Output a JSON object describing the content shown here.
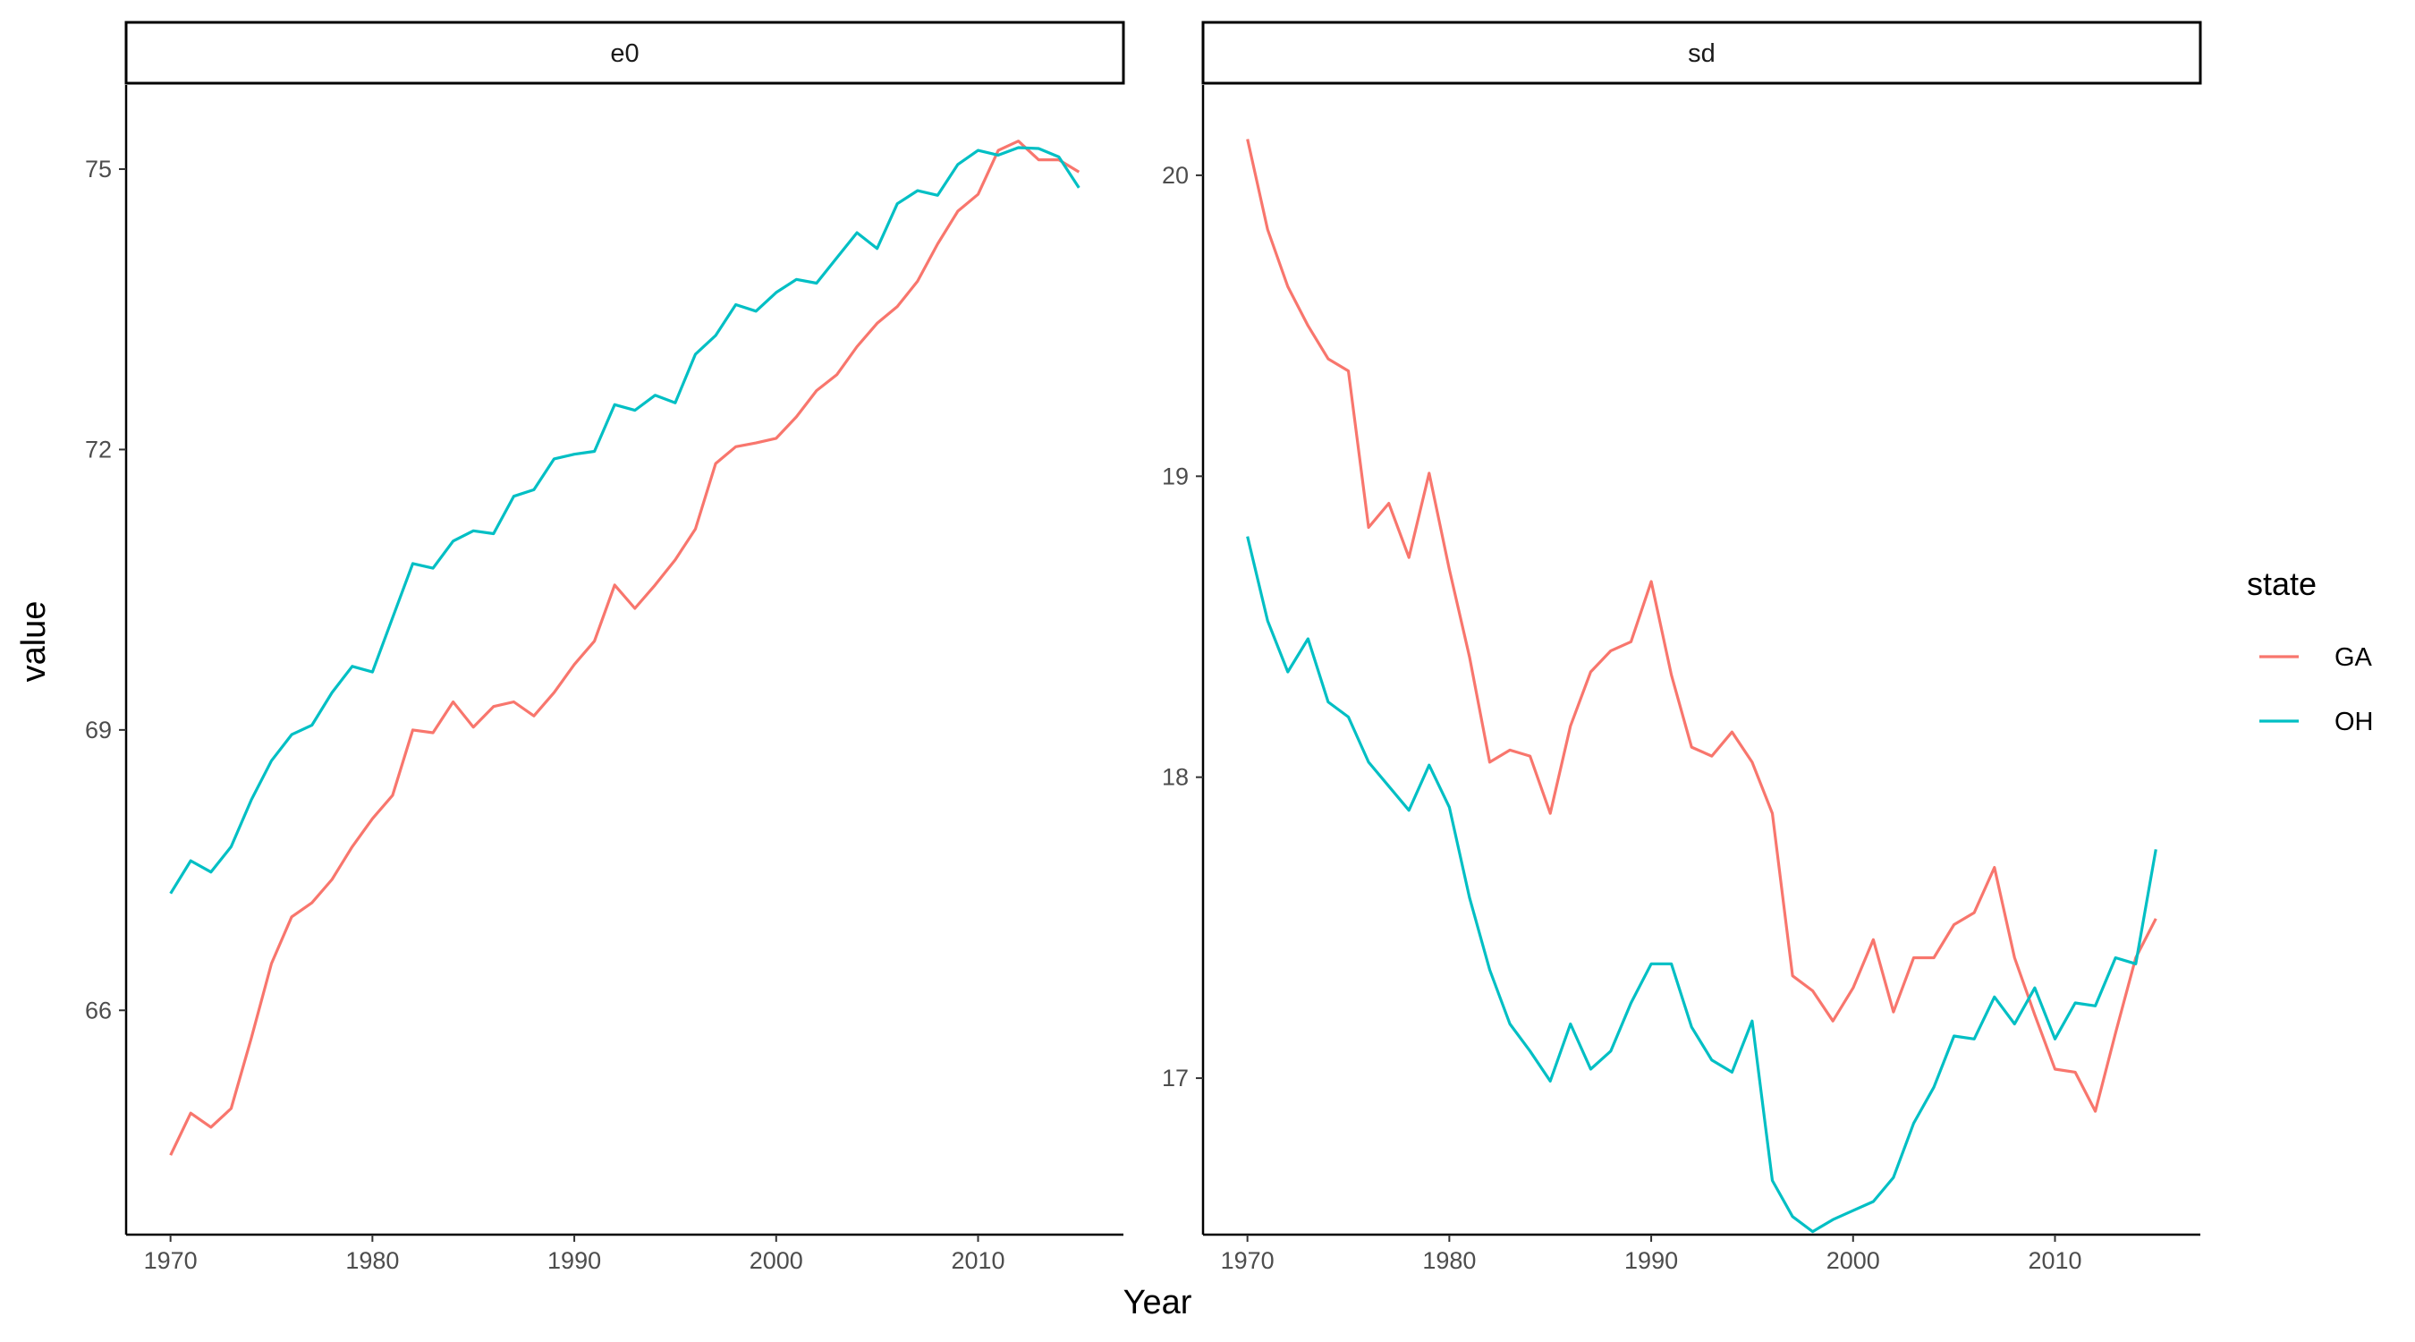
{
  "chart_data": {
    "type": "line",
    "xlabel": "Year",
    "ylabel": "value",
    "colors": {
      "GA": "#F8766D",
      "OH": "#00BFC4"
    },
    "legend": {
      "title": "state",
      "entries": [
        "GA",
        "OH"
      ],
      "placement": "right"
    },
    "x_ticks": [
      1970,
      1980,
      1990,
      2000,
      2010
    ],
    "x": [
      1970,
      1971,
      1972,
      1973,
      1974,
      1975,
      1976,
      1977,
      1978,
      1979,
      1980,
      1981,
      1982,
      1983,
      1984,
      1985,
      1986,
      1987,
      1988,
      1989,
      1990,
      1991,
      1992,
      1993,
      1994,
      1995,
      1996,
      1997,
      1998,
      1999,
      2000,
      2001,
      2002,
      2003,
      2004,
      2005,
      2006,
      2007,
      2008,
      2009,
      2010,
      2011,
      2012,
      2013,
      2014,
      2015
    ],
    "facets": [
      {
        "strip": "e0",
        "ylim": [
          63.6,
          75.9
        ],
        "y_ticks": [
          66,
          69,
          72,
          75
        ],
        "series": [
          {
            "name": "GA",
            "values": [
              64.45,
              64.9,
              64.75,
              64.95,
              65.7,
              66.5,
              67.0,
              67.15,
              67.4,
              67.75,
              68.05,
              68.3,
              69.0,
              68.97,
              69.3,
              69.03,
              69.25,
              69.3,
              69.15,
              69.4,
              69.7,
              69.95,
              70.55,
              70.3,
              70.55,
              70.82,
              71.15,
              71.85,
              72.03,
              72.07,
              72.12,
              72.35,
              72.63,
              72.8,
              73.1,
              73.35,
              73.53,
              73.8,
              74.2,
              74.55,
              74.73,
              75.2,
              75.3,
              75.1,
              75.1,
              74.97
            ]
          },
          {
            "name": "OH",
            "values": [
              67.25,
              67.6,
              67.48,
              67.75,
              68.25,
              68.67,
              68.95,
              69.05,
              69.4,
              69.68,
              69.62,
              70.2,
              70.78,
              70.73,
              71.02,
              71.13,
              71.1,
              71.5,
              71.57,
              71.9,
              71.95,
              71.98,
              72.48,
              72.42,
              72.58,
              72.5,
              73.02,
              73.22,
              73.55,
              73.48,
              73.68,
              73.82,
              73.78,
              74.05,
              74.32,
              74.15,
              74.63,
              74.77,
              74.72,
              75.05,
              75.2,
              75.15,
              75.23,
              75.22,
              75.13,
              74.8
            ]
          }
        ]
      },
      {
        "strip": "sd",
        "ylim": [
          16.48,
          20.3
        ],
        "y_ticks": [
          17,
          18,
          19,
          20
        ],
        "series": [
          {
            "name": "GA",
            "values": [
              20.12,
              19.82,
              19.63,
              19.5,
              19.39,
              19.35,
              18.83,
              18.91,
              18.73,
              19.01,
              18.69,
              18.4,
              18.05,
              18.09,
              18.07,
              17.88,
              18.17,
              18.35,
              18.42,
              18.45,
              18.65,
              18.34,
              18.1,
              18.07,
              18.15,
              18.05,
              17.88,
              17.34,
              17.29,
              17.19,
              17.3,
              17.46,
              17.22,
              17.4,
              17.4,
              17.51,
              17.55,
              17.7,
              17.4,
              17.21,
              17.03,
              17.02,
              16.89,
              17.15,
              17.4,
              17.53
            ]
          },
          {
            "name": "OH",
            "values": [
              18.8,
              18.52,
              18.35,
              18.46,
              18.25,
              18.2,
              18.05,
              17.97,
              17.89,
              18.04,
              17.9,
              17.6,
              17.36,
              17.18,
              17.09,
              16.99,
              17.18,
              17.03,
              17.09,
              17.25,
              17.38,
              17.38,
              17.17,
              17.06,
              17.02,
              17.19,
              16.66,
              16.54,
              16.49,
              16.53,
              16.56,
              16.59,
              16.67,
              16.85,
              16.97,
              17.14,
              17.13,
              17.27,
              17.18,
              17.3,
              17.13,
              17.25,
              17.24,
              17.4,
              17.38,
              17.76
            ]
          }
        ]
      }
    ]
  }
}
